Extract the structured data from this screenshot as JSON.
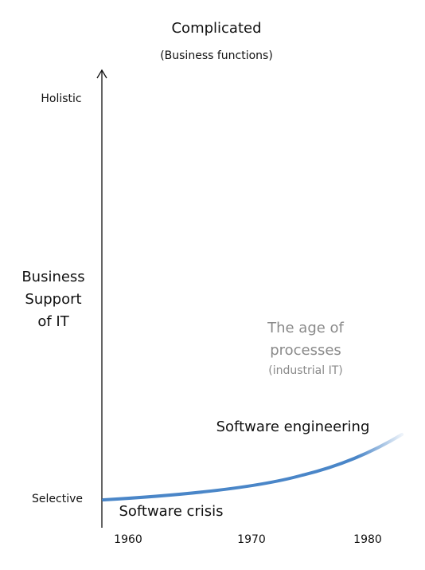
{
  "header": {
    "title": "Complicated",
    "subtitle": "(Business functions)"
  },
  "y_axis": {
    "label": [
      "Business",
      "Support",
      "of IT"
    ],
    "top": "Holistic",
    "bottom": "Selective"
  },
  "x_axis": {
    "labels": [
      "1960",
      "1970",
      "1980"
    ]
  },
  "annotations": {
    "era": [
      "The age of",
      "processes"
    ],
    "era_note": "(industrial IT)",
    "upper": "Software engineering",
    "lower": "Software crisis"
  }
}
